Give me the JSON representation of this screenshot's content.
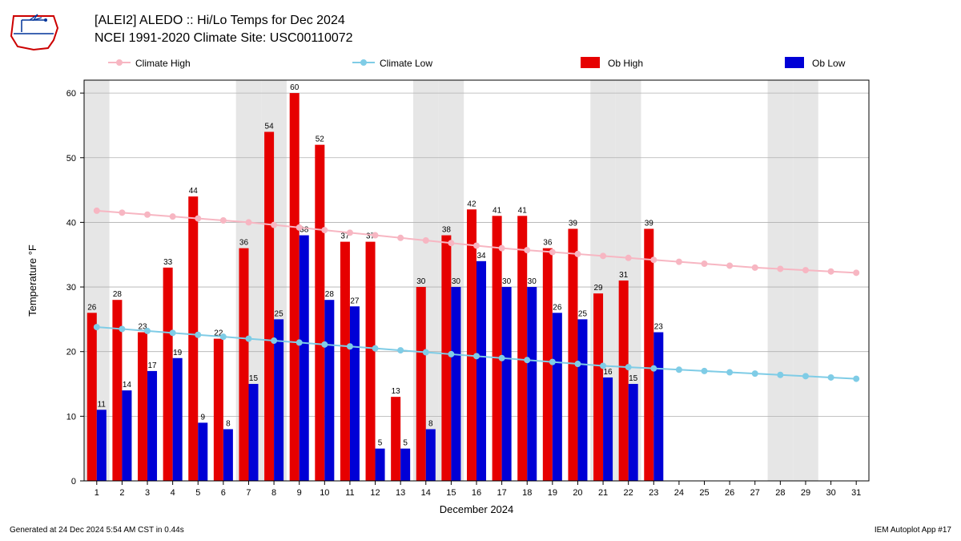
{
  "title_line1": "[ALEI2] ALEDO :: Hi/Lo Temps for Dec 2024",
  "title_line2": "NCEI 1991-2020 Climate Site: USC00110072",
  "xlabel": "December 2024",
  "ylabel": "Temperature °F",
  "footer_left": "Generated at 24 Dec 2024 5:54 AM CST in 0.44s",
  "footer_right": "IEM Autoplot App #17",
  "chart": {
    "type": "bar+line",
    "background_color": "#ffffff",
    "weekend_band_color": "#e6e6e6",
    "grid_color": "#b0b0b0",
    "axis_color": "#000000",
    "title_fontsize": 16,
    "label_fontsize": 13,
    "tick_fontsize": 11,
    "bar_label_fontsize": 10,
    "xlim": [
      0.5,
      31.5
    ],
    "ylim": [
      0,
      62
    ],
    "ytick_step": 10,
    "days": [
      1,
      2,
      3,
      4,
      5,
      6,
      7,
      8,
      9,
      10,
      11,
      12,
      13,
      14,
      15,
      16,
      17,
      18,
      19,
      20,
      21,
      22,
      23,
      24,
      25,
      26,
      27,
      28,
      29,
      30,
      31
    ],
    "weekend_days": [
      1,
      7,
      8,
      14,
      15,
      21,
      22,
      28,
      29
    ],
    "legend": {
      "items": [
        {
          "label": "Climate High",
          "type": "line",
          "color": "#f7b6c2"
        },
        {
          "label": "Climate Low",
          "type": "line",
          "color": "#7fcce6"
        },
        {
          "label": "Ob High",
          "type": "bar",
          "color": "#e60000"
        },
        {
          "label": "Ob Low",
          "type": "bar",
          "color": "#0000d6"
        }
      ]
    },
    "ob_high": {
      "color": "#e60000",
      "values": [
        26,
        28,
        23,
        33,
        44,
        22,
        36,
        54,
        60,
        52,
        37,
        37,
        13,
        30,
        38,
        42,
        41,
        41,
        36,
        39,
        29,
        31,
        39
      ]
    },
    "ob_low": {
      "color": "#0000d6",
      "values": [
        11,
        14,
        17,
        19,
        9,
        8,
        15,
        25,
        38,
        28,
        27,
        5,
        5,
        8,
        30,
        34,
        30,
        30,
        26,
        25,
        16,
        15,
        23
      ]
    },
    "climate_high": {
      "color": "#f7b6c2",
      "marker_fill": "#f7b6c2",
      "values": [
        41.8,
        41.5,
        41.2,
        40.9,
        40.6,
        40.3,
        40.0,
        39.6,
        39.2,
        38.8,
        38.4,
        38.0,
        37.6,
        37.2,
        36.8,
        36.4,
        36.0,
        35.7,
        35.4,
        35.1,
        34.8,
        34.5,
        34.2,
        33.9,
        33.6,
        33.3,
        33.0,
        32.8,
        32.6,
        32.4,
        32.2
      ]
    },
    "climate_low": {
      "color": "#7fcce6",
      "marker_fill": "#7fcce6",
      "values": [
        23.8,
        23.5,
        23.2,
        22.9,
        22.6,
        22.3,
        22.0,
        21.7,
        21.4,
        21.1,
        20.8,
        20.5,
        20.2,
        19.9,
        19.6,
        19.3,
        19.0,
        18.7,
        18.4,
        18.1,
        17.8,
        17.6,
        17.4,
        17.2,
        17.0,
        16.8,
        16.6,
        16.4,
        16.2,
        16.0,
        15.8
      ]
    }
  },
  "logo": {
    "border_color": "#cc0000",
    "inner_color": "#003399"
  }
}
